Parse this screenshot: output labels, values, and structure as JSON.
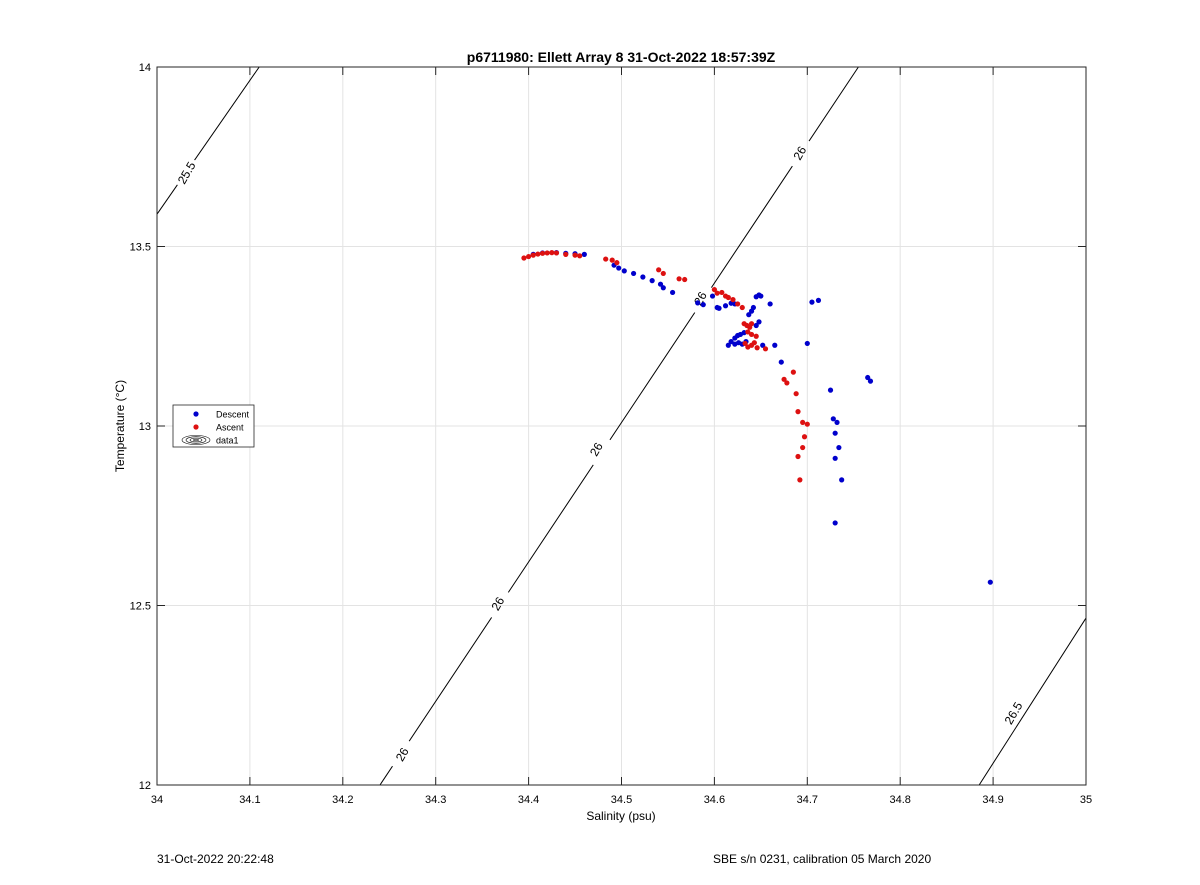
{
  "chart_data": {
    "type": "scatter",
    "title": "p6711980: Ellett Array 8 31-Oct-2022 18:57:39Z",
    "xlabel": "Salinity (psu)",
    "ylabel": "Temperature (°C)",
    "xlim": [
      34,
      35
    ],
    "ylim": [
      12,
      14
    ],
    "xticks": [
      "34",
      "34.1",
      "34.2",
      "34.3",
      "34.4",
      "34.5",
      "34.6",
      "34.7",
      "34.8",
      "34.9",
      "35"
    ],
    "yticks": [
      "12",
      "12.5",
      "13",
      "13.5",
      "14"
    ],
    "grid": true,
    "legend_position": "middle-left",
    "series": [
      {
        "name": "Descent",
        "color": "#0000cc",
        "points": [
          [
            34.405,
            13.478
          ],
          [
            34.415,
            13.482
          ],
          [
            34.43,
            13.483
          ],
          [
            34.44,
            13.481
          ],
          [
            34.45,
            13.48
          ],
          [
            34.46,
            13.478
          ],
          [
            34.492,
            13.448
          ],
          [
            34.497,
            13.44
          ],
          [
            34.503,
            13.432
          ],
          [
            34.513,
            13.425
          ],
          [
            34.523,
            13.415
          ],
          [
            34.533,
            13.405
          ],
          [
            34.542,
            13.395
          ],
          [
            34.545,
            13.385
          ],
          [
            34.555,
            13.372
          ],
          [
            34.582,
            13.343
          ],
          [
            34.588,
            13.338
          ],
          [
            34.598,
            13.362
          ],
          [
            34.603,
            13.33
          ],
          [
            34.605,
            13.328
          ],
          [
            34.612,
            13.335
          ],
          [
            34.618,
            13.342
          ],
          [
            34.622,
            13.34
          ],
          [
            34.615,
            13.225
          ],
          [
            34.618,
            13.235
          ],
          [
            34.622,
            13.245
          ],
          [
            34.625,
            13.252
          ],
          [
            34.628,
            13.255
          ],
          [
            34.632,
            13.26
          ],
          [
            34.622,
            13.228
          ],
          [
            34.626,
            13.232
          ],
          [
            34.63,
            13.228
          ],
          [
            34.634,
            13.235
          ],
          [
            34.637,
            13.31
          ],
          [
            34.64,
            13.32
          ],
          [
            34.642,
            13.33
          ],
          [
            34.645,
            13.36
          ],
          [
            34.648,
            13.365
          ],
          [
            34.65,
            13.362
          ],
          [
            34.645,
            13.28
          ],
          [
            34.648,
            13.29
          ],
          [
            34.652,
            13.225
          ],
          [
            34.66,
            13.34
          ],
          [
            34.665,
            13.225
          ],
          [
            34.672,
            13.178
          ],
          [
            34.7,
            13.23
          ],
          [
            34.705,
            13.345
          ],
          [
            34.712,
            13.35
          ],
          [
            34.725,
            13.1
          ],
          [
            34.728,
            13.02
          ],
          [
            34.732,
            13.01
          ],
          [
            34.73,
            12.98
          ],
          [
            34.734,
            12.94
          ],
          [
            34.73,
            12.91
          ],
          [
            34.737,
            12.85
          ],
          [
            34.73,
            12.73
          ],
          [
            34.765,
            13.135
          ],
          [
            34.768,
            13.125
          ],
          [
            34.897,
            12.565
          ]
        ]
      },
      {
        "name": "Ascent",
        "color": "#dd1111",
        "points": [
          [
            34.395,
            13.468
          ],
          [
            34.4,
            13.472
          ],
          [
            34.405,
            13.476
          ],
          [
            34.41,
            13.479
          ],
          [
            34.415,
            13.481
          ],
          [
            34.42,
            13.482
          ],
          [
            34.425,
            13.483
          ],
          [
            34.43,
            13.482
          ],
          [
            34.44,
            13.478
          ],
          [
            34.45,
            13.476
          ],
          [
            34.455,
            13.474
          ],
          [
            34.483,
            13.465
          ],
          [
            34.49,
            13.462
          ],
          [
            34.495,
            13.455
          ],
          [
            34.54,
            13.435
          ],
          [
            34.545,
            13.425
          ],
          [
            34.562,
            13.41
          ],
          [
            34.568,
            13.408
          ],
          [
            34.6,
            13.38
          ],
          [
            34.603,
            13.37
          ],
          [
            34.608,
            13.372
          ],
          [
            34.612,
            13.362
          ],
          [
            34.615,
            13.358
          ],
          [
            34.62,
            13.352
          ],
          [
            34.625,
            13.34
          ],
          [
            34.63,
            13.33
          ],
          [
            34.632,
            13.285
          ],
          [
            34.635,
            13.28
          ],
          [
            34.638,
            13.275
          ],
          [
            34.64,
            13.285
          ],
          [
            34.636,
            13.262
          ],
          [
            34.64,
            13.255
          ],
          [
            34.645,
            13.25
          ],
          [
            34.633,
            13.23
          ],
          [
            34.636,
            13.22
          ],
          [
            34.64,
            13.225
          ],
          [
            34.643,
            13.232
          ],
          [
            34.646,
            13.218
          ],
          [
            34.655,
            13.215
          ],
          [
            34.675,
            13.13
          ],
          [
            34.678,
            13.12
          ],
          [
            34.685,
            13.15
          ],
          [
            34.688,
            13.09
          ],
          [
            34.69,
            13.04
          ],
          [
            34.695,
            13.01
          ],
          [
            34.7,
            13.005
          ],
          [
            34.697,
            12.97
          ],
          [
            34.695,
            12.94
          ],
          [
            34.69,
            12.915
          ],
          [
            34.692,
            12.85
          ]
        ]
      },
      {
        "name": "data1",
        "type": "contour",
        "color": "#000000",
        "lines": [
          {
            "label": "25.5",
            "points": [
              [
                34.0,
                13.59
              ],
              [
                34.11,
                14.0
              ]
            ]
          },
          {
            "label": "26",
            "points": [
              [
                34.24,
                12.0
              ],
              [
                34.755,
                14.0
              ]
            ]
          },
          {
            "label": "26.5",
            "points": [
              [
                34.885,
                12.0
              ],
              [
                35.0,
                12.465
              ]
            ]
          }
        ],
        "labels": [
          {
            "text": "25.5",
            "x": 34.032,
            "y": 13.705
          },
          {
            "text": "26",
            "x": 34.692,
            "y": 13.76
          },
          {
            "text": "26",
            "x": 34.585,
            "y": 13.355
          },
          {
            "text": "26",
            "x": 34.473,
            "y": 12.935
          },
          {
            "text": "26",
            "x": 34.367,
            "y": 12.505
          },
          {
            "text": "26",
            "x": 34.264,
            "y": 12.085
          },
          {
            "text": "26.5",
            "x": 34.922,
            "y": 12.2
          }
        ]
      }
    ]
  },
  "footer": {
    "left": "31-Oct-2022 20:22:48",
    "right": "SBE s/n 0231, calibration 05 March 2020"
  }
}
